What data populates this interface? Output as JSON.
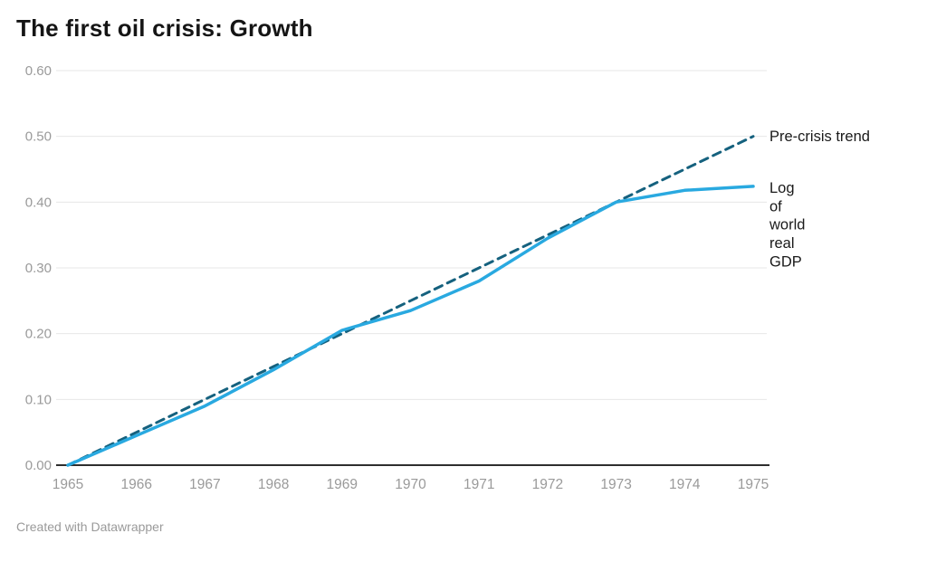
{
  "header": {
    "title": "The first oil crisis: Growth"
  },
  "footer": {
    "credit": "Created with Datawrapper"
  },
  "colors": {
    "trend_line": "#15617e",
    "gdp_line": "#29a9e0",
    "gridline": "#e7e7e7",
    "axis_line": "#2e2e2e",
    "tick_label": "#9a9a9a",
    "direct_label": "#1a1a1a"
  },
  "chart_data": {
    "type": "line",
    "title": "The first oil crisis: Growth",
    "xlabel": "",
    "ylabel": "",
    "x": [
      1965,
      1966,
      1967,
      1968,
      1969,
      1970,
      1971,
      1972,
      1973,
      1974,
      1975
    ],
    "x_tick_labels": [
      "1965",
      "1966",
      "1967",
      "1968",
      "1969",
      "1970",
      "1971",
      "1972",
      "1973",
      "1974",
      "1975"
    ],
    "ylim": [
      0,
      0.6
    ],
    "y_ticks": [
      0,
      0.1,
      0.2,
      0.3,
      0.4,
      0.5,
      0.6
    ],
    "y_tick_labels": [
      "0.00",
      "0.10",
      "0.20",
      "0.30",
      "0.40",
      "0.50",
      "0.60"
    ],
    "grid": true,
    "legend_position": "direct-labels-right",
    "series": [
      {
        "name": "Pre-crisis trend",
        "style": "dashed",
        "color": "#15617e",
        "label_lines": [
          "Pre-crisis trend"
        ],
        "values": [
          0.0,
          0.05,
          0.1,
          0.15,
          0.2,
          0.25,
          0.3,
          0.35,
          0.4,
          0.45,
          0.5
        ]
      },
      {
        "name": "Log of world real GDP",
        "style": "solid",
        "color": "#29a9e0",
        "label_lines": [
          "Log",
          "of",
          "world",
          "real",
          "GDP"
        ],
        "values": [
          0.0,
          0.045,
          0.09,
          0.145,
          0.205,
          0.235,
          0.28,
          0.345,
          0.4,
          0.418,
          0.424
        ]
      }
    ]
  }
}
